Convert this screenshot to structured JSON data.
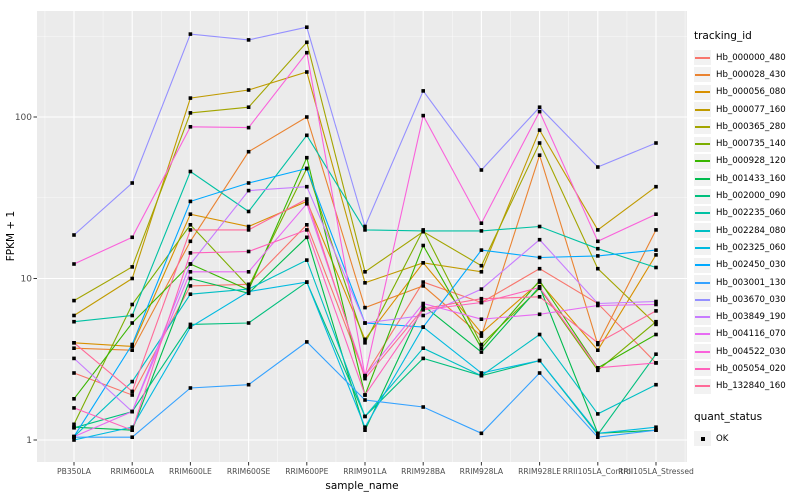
{
  "figure": {
    "xlabel": "sample_name",
    "ylabel": "FPKM + 1",
    "legend_title": "tracking_id",
    "quant_legend_title": "quant_status",
    "quant_status_label": "OK"
  },
  "colors": {
    "panel_bg": "#EBEBEB",
    "grid_major": "#FFFFFF",
    "grid_minor": "#F7F7F7",
    "tick_text": "#4D4D4D",
    "tick_mark": "#333333",
    "point": "#000000",
    "legend_key_bg": "#F2F2F2"
  },
  "chart_data": {
    "type": "line",
    "title": "",
    "xlabel": "sample_name",
    "ylabel": "FPKM + 1",
    "y_scale": "log10",
    "ylim": [
      1,
      400
    ],
    "y_ticks": [
      1,
      10,
      100
    ],
    "grid": true,
    "legend_position": "right",
    "point_shape": "filled-black-square",
    "quant_status": "OK",
    "categories": [
      "PB350LA",
      "RRIM600LA",
      "RRIM600LE",
      "RRIM600SE",
      "RRIM600PE",
      "RRIM901LA",
      "RRIM928BA",
      "RRIM928LA",
      "RRIM928LE",
      "RRII105LA_Control",
      "RRII105LA_Stressed"
    ],
    "series": [
      {
        "name": "Hb_000000_480",
        "color": "#F8766D",
        "values": [
          2.6,
          1.9,
          9.0,
          9.2,
          21.5,
          2.5,
          9.5,
          7.1,
          11.5,
          7.0,
          3.0
        ]
      },
      {
        "name": "Hb_000028_430",
        "color": "#EA8331",
        "values": [
          3.7,
          3.6,
          17.0,
          61.0,
          100.0,
          6.6,
          9.0,
          4.4,
          58.0,
          3.9,
          20.0
        ]
      },
      {
        "name": "Hb_000056_080",
        "color": "#D89000",
        "values": [
          4.0,
          3.8,
          25.0,
          21.0,
          30.0,
          4.2,
          12.5,
          4.6,
          9.5,
          3.6,
          14.0
        ]
      },
      {
        "name": "Hb_000077_160",
        "color": "#C09B00",
        "values": [
          5.9,
          10.0,
          131.0,
          147.0,
          190.0,
          9.4,
          12.5,
          11.0,
          83.0,
          20.0,
          37.0
        ]
      },
      {
        "name": "Hb_000365_280",
        "color": "#A3A500",
        "values": [
          7.3,
          11.8,
          106.0,
          115.0,
          290.0,
          11.0,
          19.5,
          12.0,
          69.0,
          11.5,
          5.2
        ]
      },
      {
        "name": "Hb_000735_140",
        "color": "#7CAE00",
        "values": [
          1.25,
          6.9,
          21.5,
          8.9,
          48.0,
          4.0,
          20.0,
          3.9,
          8.7,
          2.7,
          5.4
        ]
      },
      {
        "name": "Hb_000928_120",
        "color": "#39B600",
        "values": [
          1.8,
          5.3,
          12.3,
          8.5,
          56.0,
          1.9,
          16.0,
          3.7,
          9.7,
          2.8,
          4.5
        ]
      },
      {
        "name": "Hb_001433_160",
        "color": "#00BB4E",
        "values": [
          1.2,
          1.15,
          10.0,
          8.1,
          18.0,
          1.15,
          6.8,
          3.5,
          8.9,
          1.1,
          1.15
        ]
      },
      {
        "name": "Hb_002000_090",
        "color": "#00BF7D",
        "values": [
          1.19,
          1.5,
          5.2,
          5.3,
          9.5,
          1.4,
          3.2,
          2.5,
          3.1,
          1.08,
          3.4
        ]
      },
      {
        "name": "Hb_002235_060",
        "color": "#00C1A3",
        "values": [
          5.4,
          5.9,
          46.0,
          26.0,
          77.0,
          20.0,
          19.7,
          19.7,
          21.0,
          15.3,
          11.7
        ]
      },
      {
        "name": "Hb_002284_080",
        "color": "#00BFC4",
        "values": [
          1.05,
          2.3,
          8.0,
          8.6,
          13.0,
          1.4,
          3.7,
          2.5,
          4.5,
          1.45,
          2.2
        ]
      },
      {
        "name": "Hb_002325_060",
        "color": "#00BAE0",
        "values": [
          1.0,
          1.2,
          5.0,
          8.3,
          9.5,
          1.2,
          5.0,
          2.6,
          3.1,
          1.1,
          1.2
        ]
      },
      {
        "name": "Hb_002450_030",
        "color": "#00A9FF",
        "values": [
          1.05,
          3.9,
          30.0,
          39.0,
          48.0,
          5.3,
          5.0,
          15.0,
          13.5,
          13.8,
          15.0
        ]
      },
      {
        "name": "Hb_003001_130",
        "color": "#35A2FF",
        "values": [
          1.04,
          1.04,
          2.1,
          2.2,
          4.05,
          1.77,
          1.6,
          1.1,
          2.6,
          1.04,
          1.15
        ]
      },
      {
        "name": "Hb_003670_030",
        "color": "#9590FF",
        "values": [
          18.6,
          39.0,
          326.0,
          300.0,
          360.0,
          21.0,
          145.0,
          47.0,
          115.0,
          49.0,
          69.0
        ]
      },
      {
        "name": "Hb_003849_190",
        "color": "#C77CFF",
        "values": [
          3.2,
          1.5,
          12.3,
          35.0,
          37.0,
          5.3,
          5.9,
          8.6,
          17.4,
          7.0,
          7.2
        ]
      },
      {
        "name": "Hb_004116_070",
        "color": "#E76BF3",
        "values": [
          1.05,
          1.5,
          11.0,
          11.0,
          29.0,
          2.5,
          7.0,
          5.6,
          6.0,
          6.8,
          6.9
        ]
      },
      {
        "name": "Hb_004522_030",
        "color": "#FA62DB",
        "values": [
          12.3,
          18.0,
          87.0,
          86.0,
          250.0,
          2.5,
          102.0,
          22.0,
          108.0,
          17.0,
          25.0
        ]
      },
      {
        "name": "Hb_005054_020",
        "color": "#FF62BC",
        "values": [
          1.58,
          1.15,
          14.4,
          14.7,
          20.0,
          1.9,
          6.4,
          7.1,
          8.8,
          2.8,
          3.0
        ]
      },
      {
        "name": "Hb_132840_160",
        "color": "#FF6A98",
        "values": [
          4.0,
          2.0,
          20.0,
          20.0,
          31.0,
          2.4,
          6.5,
          7.5,
          7.7,
          4.0,
          6.3
        ]
      }
    ]
  }
}
